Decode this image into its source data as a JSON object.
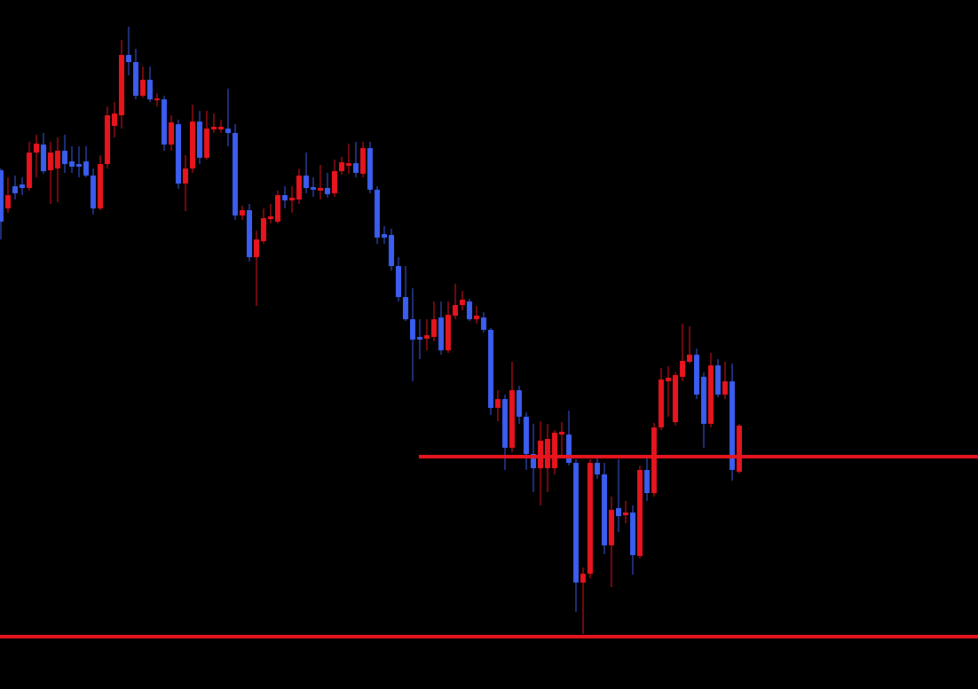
{
  "chart_data": {
    "type": "candlestick",
    "up_color": "#e8141e",
    "down_color": "#3b5ef0",
    "ylim": [
      0,
      777
    ],
    "open": [
      585,
      542,
      567,
      569,
      565,
      605,
      614,
      585,
      587,
      607,
      595,
      592,
      595,
      579,
      542,
      592,
      635,
      647,
      715,
      707,
      669,
      687,
      664,
      665,
      614,
      637,
      570,
      587,
      640,
      599,
      631,
      631,
      632,
      627,
      534,
      540,
      487,
      505,
      530,
      527,
      557,
      551,
      552,
      579,
      566,
      562,
      565,
      559,
      584,
      590,
      593,
      581,
      610,
      563,
      513,
      512,
      477,
      442,
      417,
      397,
      395,
      397,
      419,
      382,
      421,
      433,
      437,
      417,
      419,
      405,
      317,
      327,
      272,
      337,
      307,
      265,
      249,
      249,
      249,
      287,
      287,
      255,
      120,
      130,
      255,
      242,
      162,
      204,
      196,
      199,
      150,
      247,
      221,
      295,
      347,
      301,
      352,
      369,
      377,
      352,
      299,
      365,
      332,
      347,
      245
    ],
    "high": [
      587,
      577,
      579,
      577,
      617,
      625,
      627,
      617,
      622,
      625,
      612,
      612,
      612,
      587,
      602,
      657,
      662,
      732,
      747,
      722,
      702,
      702,
      672,
      669,
      647,
      642,
      602,
      659,
      652,
      652,
      649,
      642,
      677,
      637,
      545,
      547,
      517,
      542,
      547,
      562,
      567,
      567,
      587,
      605,
      577,
      591,
      582,
      597,
      600,
      615,
      617,
      617,
      617,
      567,
      522,
      519,
      487,
      477,
      452,
      417,
      417,
      437,
      437,
      437,
      457,
      449,
      440,
      432,
      425,
      407,
      337,
      332,
      369,
      342,
      312,
      299,
      302,
      299,
      292,
      301,
      314,
      259,
      137,
      259,
      262,
      255,
      217,
      259,
      212,
      207,
      252,
      262,
      300,
      362,
      364,
      357,
      412,
      409,
      384,
      357,
      379,
      372,
      369,
      367,
      299
    ],
    "low": [
      507,
      537,
      552,
      557,
      562,
      577,
      581,
      547,
      549,
      582,
      582,
      577,
      577,
      535,
      540,
      587,
      622,
      632,
      692,
      665,
      667,
      662,
      657,
      607,
      607,
      564,
      539,
      582,
      592,
      597,
      627,
      627,
      612,
      529,
      529,
      482,
      432,
      502,
      525,
      525,
      542,
      537,
      547,
      559,
      555,
      552,
      554,
      555,
      580,
      581,
      577,
      577,
      559,
      502,
      502,
      472,
      437,
      415,
      347,
      372,
      382,
      392,
      377,
      379,
      417,
      427,
      415,
      412,
      402,
      309,
      302,
      247,
      267,
      299,
      247,
      222,
      207,
      222,
      242,
      262,
      252,
      87,
      62,
      125,
      237,
      152,
      115,
      177,
      187,
      129,
      147,
      212,
      217,
      292,
      307,
      297,
      347,
      367,
      327,
      272,
      295,
      329,
      327,
      235,
      243
    ],
    "close": [
      527,
      557,
      559,
      565,
      605,
      615,
      584,
      605,
      607,
      592,
      589,
      589,
      579,
      542,
      592,
      647,
      649,
      715,
      707,
      669,
      687,
      665,
      666,
      614,
      639,
      570,
      587,
      640,
      599,
      632,
      634,
      634,
      627,
      534,
      540,
      487,
      507,
      531,
      533,
      557,
      551,
      554,
      579,
      565,
      563,
      565,
      558,
      584,
      594,
      593,
      582,
      610,
      563,
      509,
      509,
      477,
      442,
      417,
      394,
      394,
      399,
      417,
      382,
      422,
      433,
      439,
      417,
      421,
      405,
      317,
      327,
      272,
      337,
      307,
      265,
      249,
      280,
      282,
      289,
      290,
      255,
      120,
      130,
      255,
      242,
      162,
      202,
      195,
      199,
      151,
      247,
      221,
      295,
      349,
      351,
      354,
      370,
      377,
      332,
      299,
      365,
      332,
      347,
      247,
      297
    ],
    "hlines": [
      {
        "value": 262,
        "color": "#e8141e",
        "start": 59
      },
      {
        "value": 59,
        "color": "#e8141e",
        "start": 0
      }
    ]
  }
}
